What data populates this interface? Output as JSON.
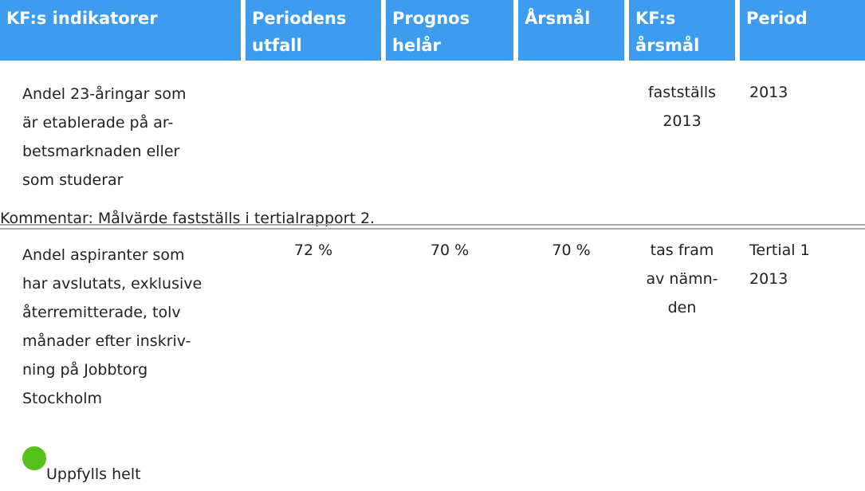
{
  "table": {
    "headers": [
      "KF:s indikatorer",
      "Periodens utfall",
      "Prognos helår",
      "Årsmål",
      "KF:s årsmål",
      "Period"
    ],
    "rows": [
      {
        "indicator": "Andel 23-åringar som\när etablerade på ar-\nbetsmarknaden eller\nsom studerar",
        "kf_target": "fastställs\n2013",
        "period": "2013",
        "comment": "Kommentar: Målvärde fastställs i tertialrapport 2."
      },
      {
        "indicator": "Andel aspiranter som\nhar avslutats, exklusive\nåterremitterade, tolv\nmånader efter inskriv-\nning på Jobbtorg\nStockholm",
        "period_outcome": "72 %",
        "forecast": "70 %",
        "target": "70 %",
        "kf_target": "tas fram\nav nämn-\nden",
        "period": "Tertial 1\n2013",
        "status": "Uppfylls helt"
      }
    ]
  }
}
